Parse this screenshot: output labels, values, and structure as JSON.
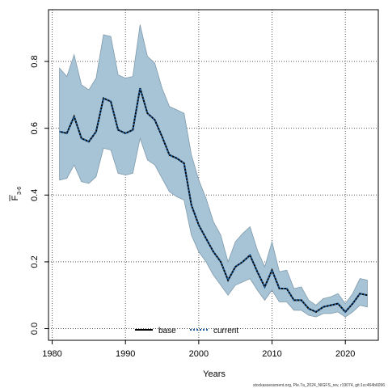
{
  "chart_data": {
    "type": "line",
    "xlabel": "Years",
    "ylabel_main": "F",
    "ylabel_sub": "3-6",
    "xlim": [
      1979.5,
      2024.5
    ],
    "ylim": [
      -0.035,
      0.955
    ],
    "xticks": [
      1980,
      1990,
      2000,
      2010,
      2020
    ],
    "yticks": [
      0.0,
      0.2,
      0.4,
      0.6,
      0.8
    ],
    "grid": true,
    "legend": {
      "placement": "bottom-center",
      "entries": [
        {
          "label": "base",
          "color": "#000000",
          "style": "solid"
        },
        {
          "label": "current",
          "color": "#1f5f9e",
          "style": "dotted"
        }
      ]
    },
    "band_color": "#a7c4d6",
    "band_edge_color": "#7f9aab",
    "x": [
      1981,
      1982,
      1983,
      1984,
      1985,
      1986,
      1987,
      1988,
      1989,
      1990,
      1991,
      1992,
      1993,
      1994,
      1995,
      1996,
      1997,
      1998,
      1999,
      2000,
      2001,
      2002,
      2003,
      2004,
      2005,
      2006,
      2007,
      2008,
      2009,
      2010,
      2011,
      2012,
      2013,
      2014,
      2015,
      2016,
      2017,
      2018,
      2019,
      2020,
      2021,
      2022,
      2023
    ],
    "series": [
      {
        "name": "base",
        "values": [
          0.59,
          0.585,
          0.635,
          0.57,
          0.56,
          0.59,
          0.69,
          0.68,
          0.595,
          0.585,
          0.595,
          0.72,
          0.645,
          0.625,
          0.575,
          0.52,
          0.51,
          0.495,
          0.37,
          0.31,
          0.27,
          0.23,
          0.2,
          0.145,
          0.185,
          0.2,
          0.22,
          0.17,
          0.125,
          0.175,
          0.12,
          0.12,
          0.085,
          0.085,
          0.06,
          0.05,
          0.065,
          0.07,
          0.075,
          0.05,
          0.075,
          0.105,
          0.1
        ]
      },
      {
        "name": "current",
        "values": [
          0.59,
          0.585,
          0.635,
          0.57,
          0.56,
          0.59,
          0.69,
          0.68,
          0.595,
          0.585,
          0.595,
          0.72,
          0.645,
          0.625,
          0.575,
          0.52,
          0.51,
          0.495,
          0.37,
          0.31,
          0.27,
          0.23,
          0.2,
          0.145,
          0.185,
          0.2,
          0.22,
          0.17,
          0.125,
          0.175,
          0.12,
          0.12,
          0.085,
          0.085,
          0.06,
          0.05,
          0.065,
          0.07,
          0.075,
          0.05,
          0.075,
          0.105,
          0.1
        ]
      }
    ],
    "band": {
      "upper": [
        0.78,
        0.755,
        0.82,
        0.73,
        0.715,
        0.75,
        0.88,
        0.875,
        0.76,
        0.75,
        0.755,
        0.91,
        0.815,
        0.795,
        0.72,
        0.665,
        0.655,
        0.645,
        0.52,
        0.445,
        0.39,
        0.32,
        0.28,
        0.2,
        0.26,
        0.285,
        0.305,
        0.235,
        0.185,
        0.26,
        0.17,
        0.175,
        0.12,
        0.125,
        0.085,
        0.07,
        0.09,
        0.095,
        0.105,
        0.075,
        0.105,
        0.15,
        0.145
      ],
      "lower": [
        0.445,
        0.45,
        0.49,
        0.44,
        0.435,
        0.455,
        0.54,
        0.535,
        0.465,
        0.46,
        0.465,
        0.57,
        0.505,
        0.49,
        0.45,
        0.41,
        0.395,
        0.385,
        0.28,
        0.23,
        0.2,
        0.16,
        0.13,
        0.1,
        0.13,
        0.14,
        0.15,
        0.115,
        0.085,
        0.115,
        0.08,
        0.08,
        0.055,
        0.055,
        0.04,
        0.035,
        0.045,
        0.045,
        0.05,
        0.035,
        0.05,
        0.07,
        0.065
      ]
    }
  },
  "caption": "stockassessment.org, Ple.7a_2024_NIGFS_rev, r19074, git:1cc464b6096"
}
